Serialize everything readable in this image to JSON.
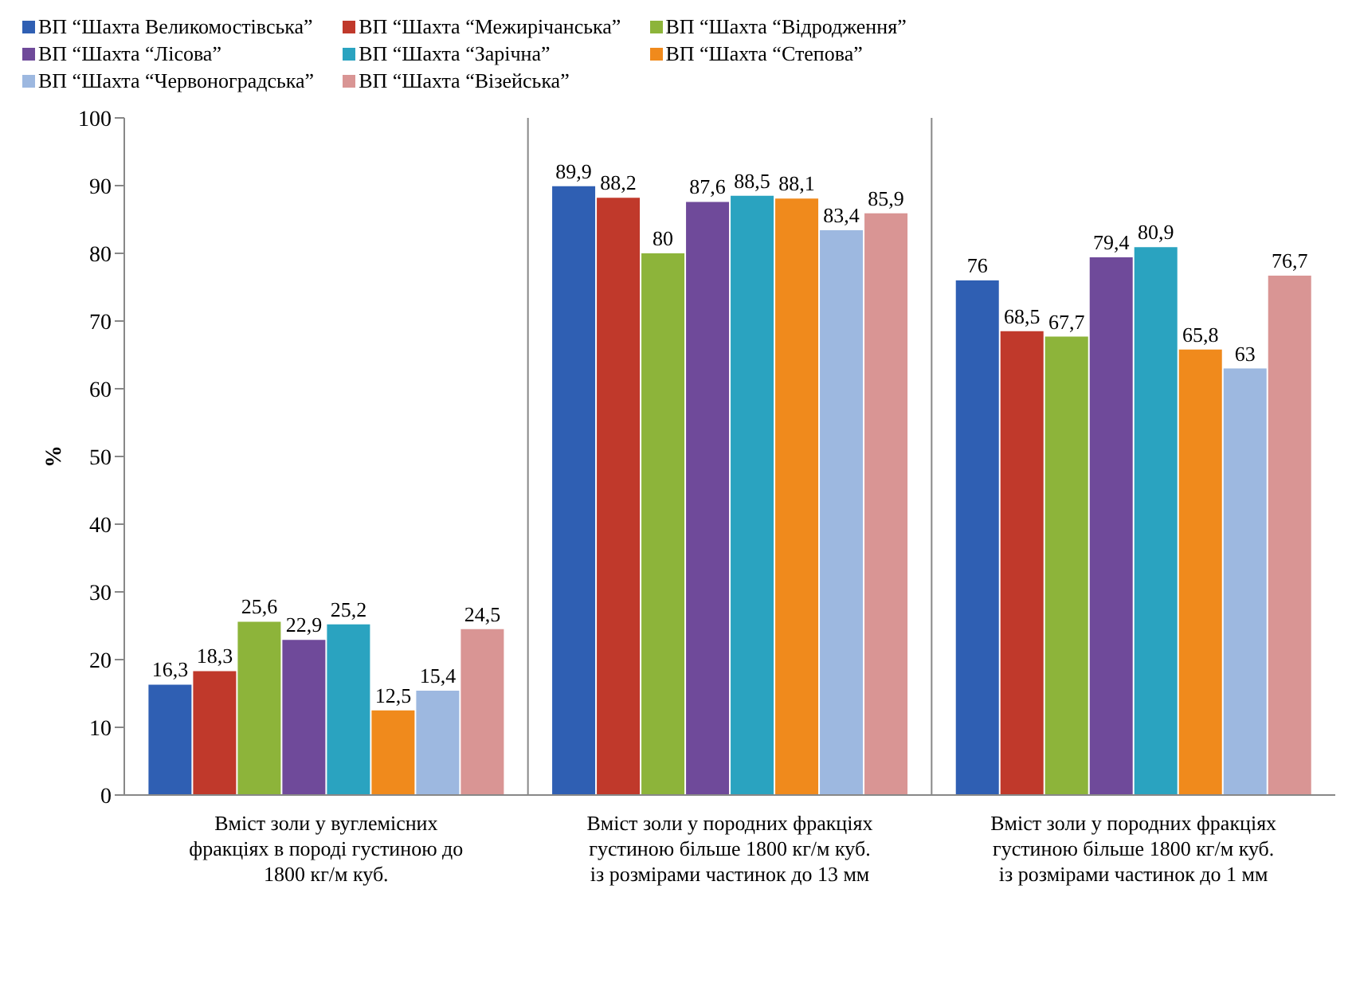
{
  "chart_data": {
    "type": "bar",
    "ylabel": "%",
    "categories": [
      "Вміст золи у вуглемісних фракціях в породі густиною до 1800 кг/м куб.",
      "Вміст золи у породних фракціях густиною більше 1800 кг/м куб. із розмірами частинок до 13 мм",
      "Вміст золи у породних фракціях густиною більше 1800 кг/м куб. із розмірами частинок до 1 мм"
    ],
    "series": [
      {
        "name": "ВП “Шахта Великомостівська”",
        "color": "#2f5fb3",
        "values": [
          16.3,
          89.9,
          76
        ],
        "value_labels": [
          "16,3",
          "89,9",
          "76"
        ]
      },
      {
        "name": "ВП “Шахта “Межирічанська”",
        "color": "#c0392b",
        "values": [
          18.3,
          88.2,
          68.5
        ],
        "value_labels": [
          "18,3",
          "88,2",
          "68,5"
        ]
      },
      {
        "name": "ВП “Шахта “Відродження”",
        "color": "#8db43a",
        "values": [
          25.6,
          80,
          67.7
        ],
        "value_labels": [
          "25,6",
          "80",
          "67,7"
        ]
      },
      {
        "name": "ВП “Шахта “Лісова”",
        "color": "#6f4a9a",
        "values": [
          22.9,
          87.6,
          79.4
        ],
        "value_labels": [
          "22,9",
          "87,6",
          "79,4"
        ]
      },
      {
        "name": "ВП “Шахта “Зарічна”",
        "color": "#2aa3c0",
        "values": [
          25.2,
          88.5,
          80.9
        ],
        "value_labels": [
          "25,2",
          "88,5",
          "80,9"
        ]
      },
      {
        "name": "ВП “Шахта “Степова”",
        "color": "#f08a1c",
        "values": [
          12.5,
          88.1,
          65.8
        ],
        "value_labels": [
          "12,5",
          "88,1",
          "65,8"
        ]
      },
      {
        "name": "ВП “Шахта “Червоноградська”",
        "color": "#9db8e0",
        "values": [
          15.4,
          83.4,
          63
        ],
        "value_labels": [
          "15,4",
          "83,4",
          "63"
        ]
      },
      {
        "name": "ВП “Шахта “Візейська”",
        "color": "#d99594",
        "values": [
          24.5,
          85.9,
          76.7
        ],
        "value_labels": [
          "24,5",
          "85,9",
          "76,7"
        ]
      }
    ],
    "ylim": [
      0,
      100
    ],
    "yticks": [
      0,
      10,
      20,
      30,
      40,
      50,
      60,
      70,
      80,
      90,
      100
    ],
    "grid": "x",
    "legend": "top"
  }
}
